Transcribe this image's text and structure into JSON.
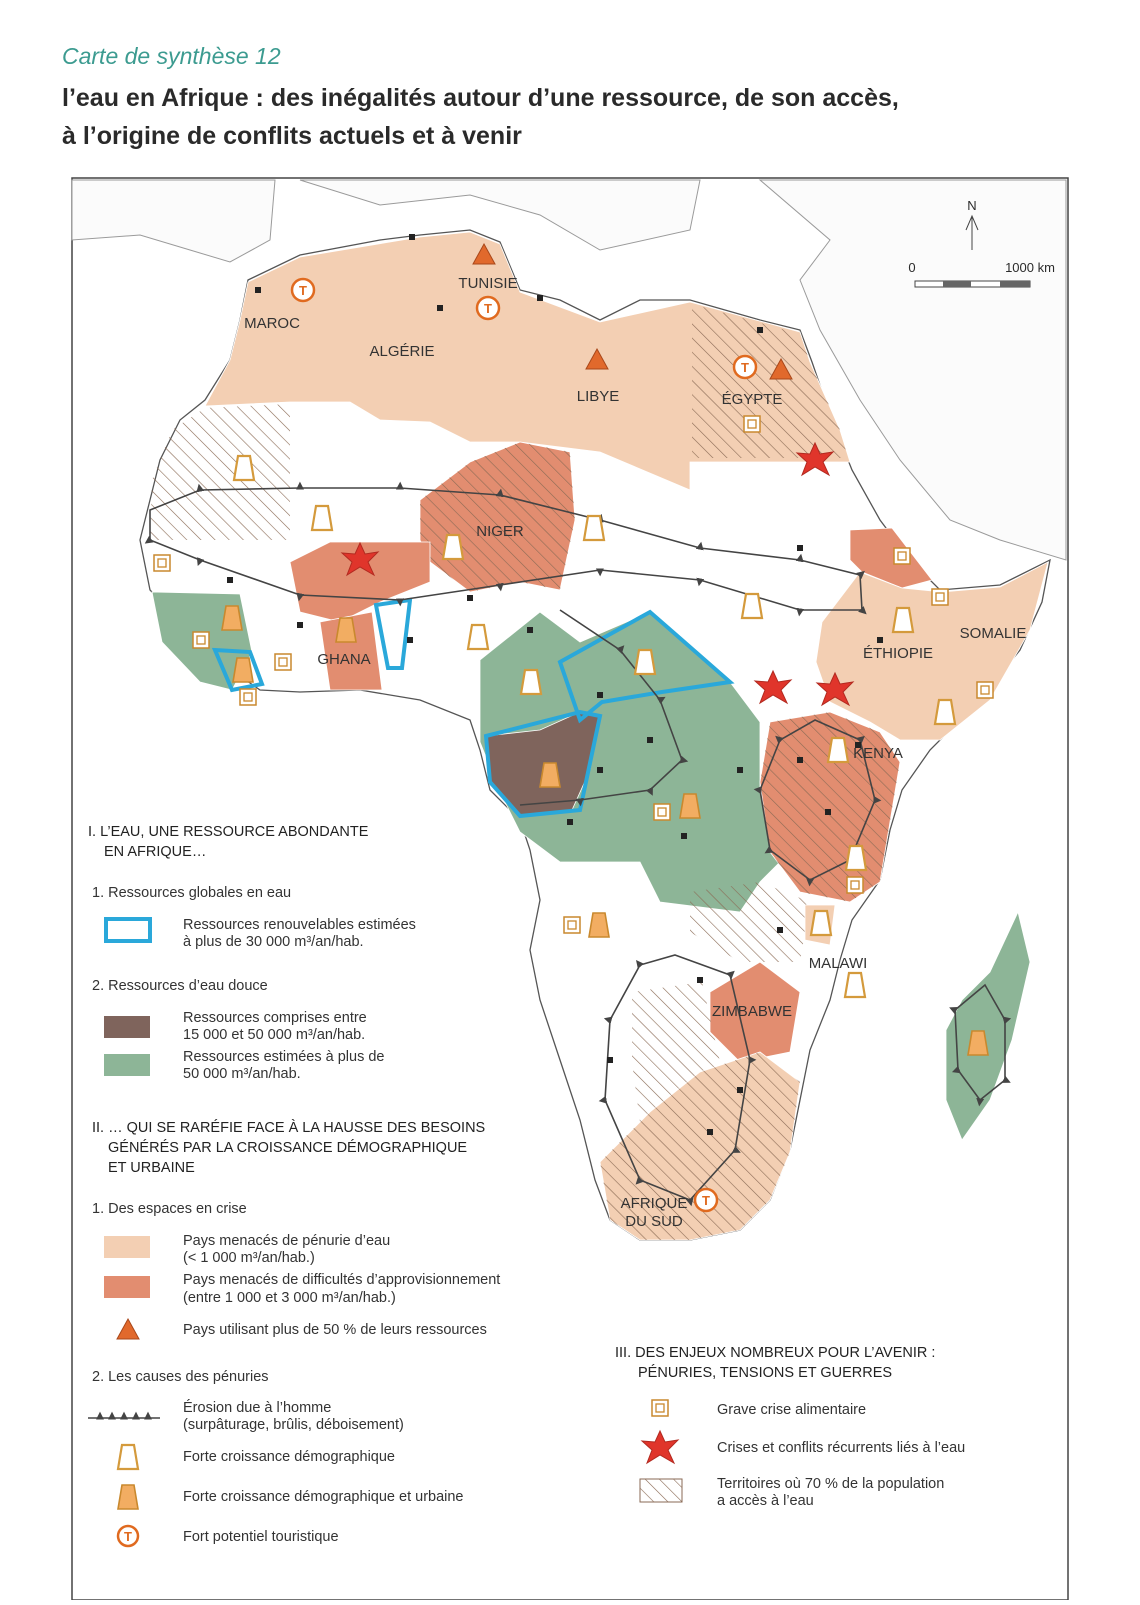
{
  "header": {
    "subtitle": "Carte de synthèse 12",
    "title": [
      "l’eau en Afrique : des inégalités autour d’une ressource, de son accès,",
      "à l’origine de conflits actuels et à venir"
    ]
  },
  "map": {
    "north": "N",
    "scale": [
      "0",
      "1000 km"
    ],
    "tourism_symbol": "T",
    "countries": [
      "MAROC",
      "ALGÉRIE",
      "TUNISIE",
      "LIBYE",
      "ÉGYPTE",
      "NIGER",
      "GHANA",
      "ÉTHIOPIE",
      "SOMALIE",
      "KENYA",
      "MALAWI",
      "ZIMBABWE"
    ],
    "south_africa": [
      "AFRIQUE",
      "DU SUD"
    ]
  },
  "legend": {
    "sections": [
      {
        "heading": [
          "I. L’EAU, UNE RESSOURCE ABONDANTE",
          "EN AFRIQUE…"
        ],
        "groups": [
          {
            "title": "1. Ressources globales en eau",
            "items": [
              [
                "Ressources renouvelables estimées",
                "à plus de 30 000 m³/an/hab."
              ]
            ]
          },
          {
            "title": "2. Ressources d’eau douce",
            "items": [
              [
                "Ressources comprises entre",
                "15 000 et 50 000 m³/an/hab."
              ],
              [
                "Ressources estimées à plus de",
                "50 000 m³/an/hab."
              ]
            ]
          }
        ]
      },
      {
        "heading": [
          "II. … QUI SE RARÉFIE FACE À LA HAUSSE DES BESOINS",
          "GÉNÉRÉS PAR LA CROISSANCE DÉMOGRAPHIQUE",
          "ET URBAINE"
        ],
        "groups": [
          {
            "title": "1. Des espaces en crise",
            "items": [
              [
                "Pays menacés de pénurie d’eau",
                "(< 1 000 m³/an/hab.)"
              ],
              [
                "Pays menacés de difficultés d’approvisionnement",
                "(entre 1 000 et 3 000 m³/an/hab.)"
              ],
              [
                "Pays utilisant plus de 50 % de leurs ressources"
              ]
            ]
          },
          {
            "title": "2. Les causes des pénuries",
            "items": [
              [
                "Érosion due à l’homme",
                "(surpâturage, brûlis, déboisement)"
              ],
              [
                "Forte croissance démographique"
              ],
              [
                "Forte croissance démographique et urbaine"
              ],
              [
                "Fort potentiel touristique"
              ]
            ]
          }
        ]
      },
      {
        "heading": [
          "III. DES ENJEUX NOMBREUX POUR L’AVENIR :",
          "PÉNURIES, TENSIONS ET GUERRES"
        ],
        "items": [
          [
            "Grave crise alimentaire"
          ],
          [
            "Crises et conflits récurrents liés à l’eau"
          ],
          [
            "Territoires où 70 % de la population",
            "a accès à l’eau"
          ]
        ]
      }
    ]
  }
}
